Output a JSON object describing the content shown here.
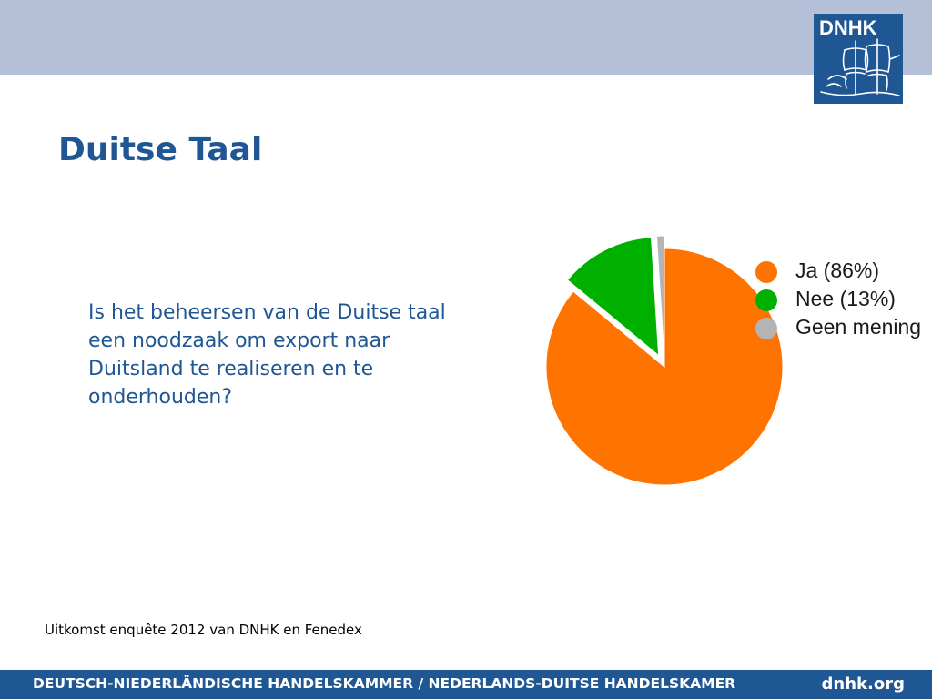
{
  "logo": {
    "text": "DNHK"
  },
  "slide": {
    "title": "Duitse Taal",
    "question": "Is het beheersen van de Duitse taal een noodzaak om export naar Duitsland te realiseren en te onderhouden?",
    "source": "Uitkomst enquête 2012 van DNHK en Fenedex"
  },
  "footer": {
    "text": "DEUTSCH-NIEDERLÄNDISCHE HANDELSKAMMER / NEDERLANDS-DUITSE HANDELSKAMER",
    "site": "dnhk.org"
  },
  "colors": {
    "top_band": "#b4c0d8",
    "brand_blue": "#1f5694",
    "ja": "#ff7300",
    "nee": "#00b000",
    "geen": "#b4b4b4"
  },
  "chart_data": {
    "type": "pie",
    "categories": [
      "Ja (86%)",
      "Nee (13%)",
      "Geen mening"
    ],
    "values": [
      86,
      13,
      1
    ],
    "colors": [
      "#ff7300",
      "#00b000",
      "#b4b4b4"
    ],
    "exploded": [
      false,
      true,
      true
    ],
    "legend_position": "right"
  }
}
